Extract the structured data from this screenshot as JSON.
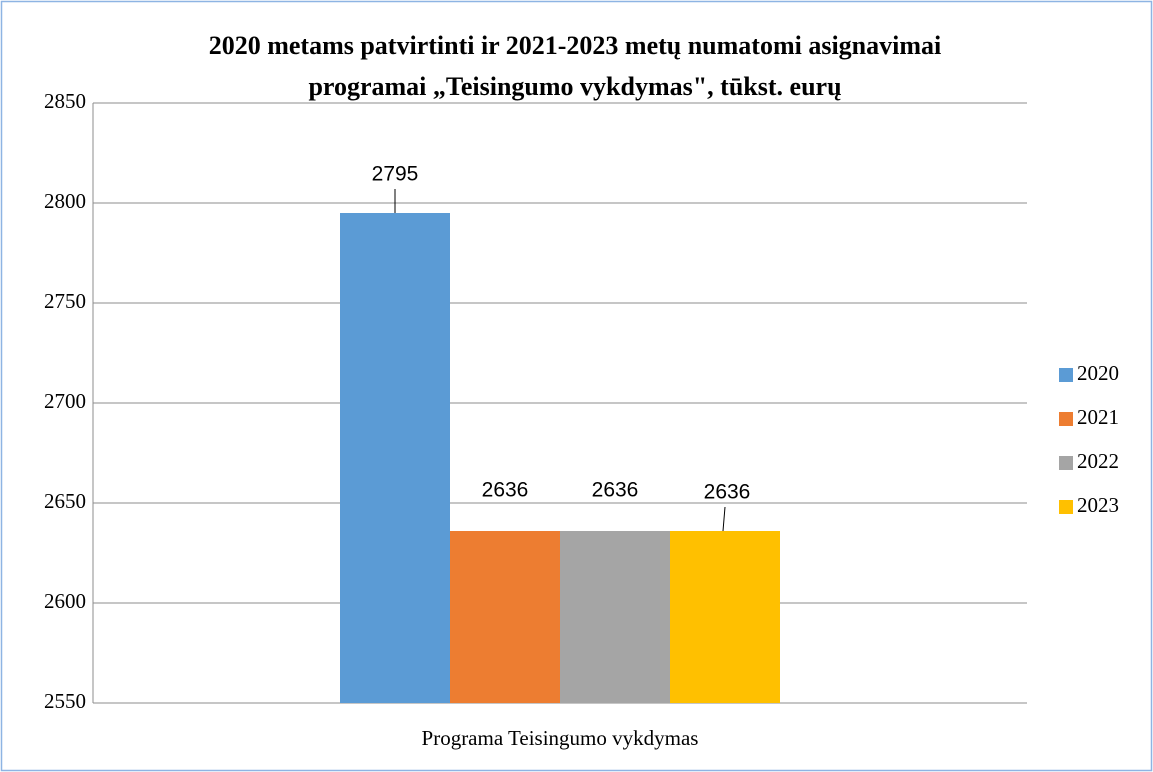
{
  "chart_data": {
    "type": "bar",
    "title": [
      "2020 metams patvirtinti ir 2021-2023 metų numatomi asignavimai",
      "programai „Teisingumo vykdymas\", tūkst. eurų"
    ],
    "categories": [
      "Programa Teisingumo vykdymas"
    ],
    "series": [
      {
        "name": "2020",
        "color": "#5b9bd5",
        "values": [
          2795
        ]
      },
      {
        "name": "2021",
        "color": "#ed7d31",
        "values": [
          2636
        ]
      },
      {
        "name": "2022",
        "color": "#a5a5a5",
        "values": [
          2636
        ]
      },
      {
        "name": "2023",
        "color": "#ffc000",
        "values": [
          2636
        ]
      }
    ],
    "ylim": [
      2550,
      2850
    ],
    "yticks": [
      2550,
      2600,
      2650,
      2700,
      2750,
      2800,
      2850
    ],
    "grid": true,
    "legend": "right"
  }
}
